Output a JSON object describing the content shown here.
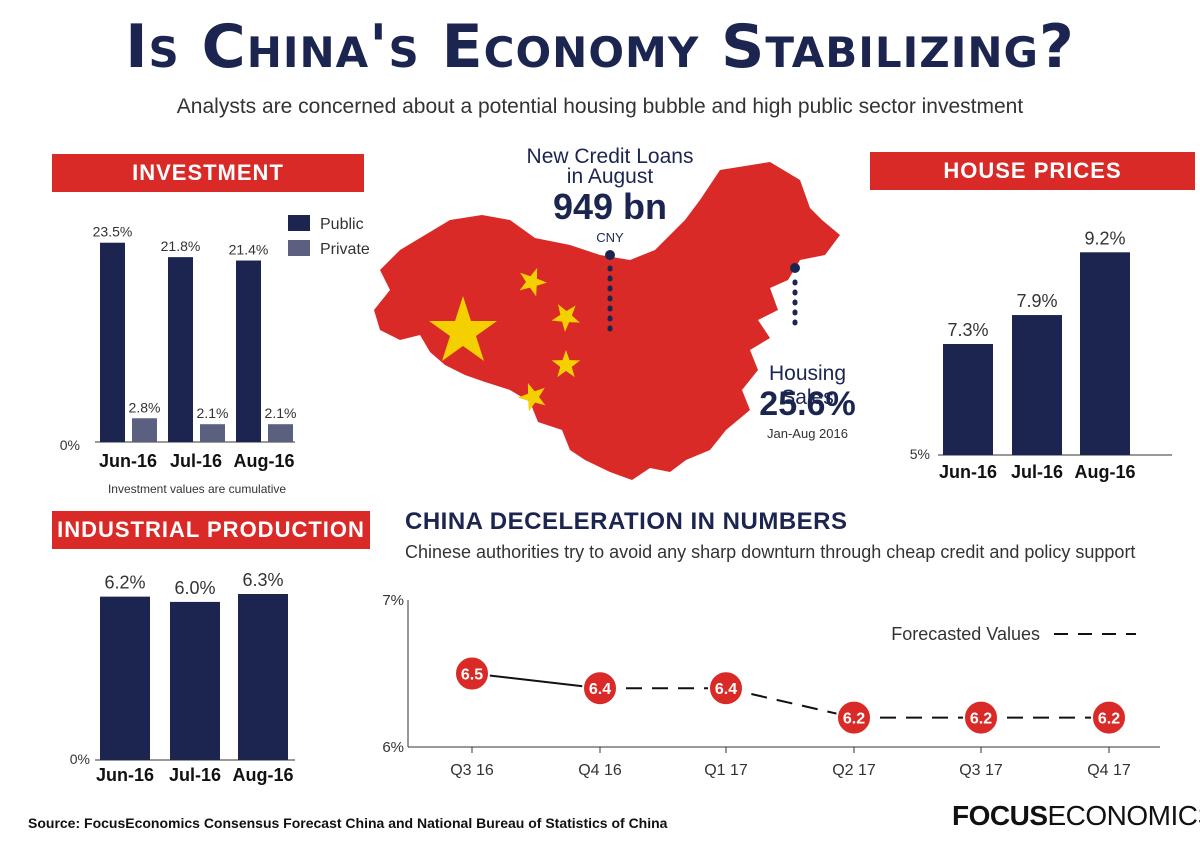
{
  "header": {
    "title": "Is China's Economy Stabilizing?",
    "subtitle": "Analysts are concerned about a potential housing bubble and high public sector investment"
  },
  "colors": {
    "navy": "#1b2550",
    "red": "#d92a27",
    "private": "#5b6080",
    "yellow": "#f5d000"
  },
  "map": {
    "credit_label": "New Credit Loans in August",
    "credit_value": "949 bn",
    "credit_unit": "CNY",
    "housing_label": "Housing Sales",
    "housing_value": "25.6%",
    "housing_period": "Jan-Aug 2016"
  },
  "industrial": {
    "banner": "INDUSTRIAL PRODUCTION"
  },
  "investment": {
    "banner": "INVESTMENT",
    "note": "Investment values are cumulative"
  },
  "house": {
    "banner": "HOUSE PRICES"
  },
  "deceleration": {
    "title": "CHINA DECELERATION IN NUMBERS",
    "subtitle": "Chinese authorities try to avoid any sharp downturn through cheap credit and policy support",
    "legend": "Forecasted Values"
  },
  "footer": {
    "source": "Source: FocusEconomics Consensus Forecast China and National Bureau of Statistics of China",
    "logo_bold": "FOCUS",
    "logo_light": "ECONOMICS"
  },
  "chart_data": [
    {
      "type": "bar",
      "title": "INVESTMENT",
      "categories": [
        "Jun-16",
        "Jul-16",
        "Aug-16"
      ],
      "series": [
        {
          "name": "Public",
          "values": [
            23.5,
            21.8,
            21.4
          ],
          "labels": [
            "23.5%",
            "21.8%",
            "21.4%"
          ]
        },
        {
          "name": "Private",
          "values": [
            2.8,
            2.1,
            2.1
          ],
          "labels": [
            "2.8%",
            "2.1%",
            "2.1%"
          ]
        }
      ],
      "ymin_label": "0%",
      "ylim": [
        0,
        25
      ],
      "note": "Investment values are cumulative",
      "legend": "top-right"
    },
    {
      "type": "bar",
      "title": "HOUSE PRICES",
      "categories": [
        "Jun-16",
        "Jul-16",
        "Aug-16"
      ],
      "values": [
        7.3,
        7.9,
        9.2
      ],
      "labels": [
        "7.3%",
        "7.9%",
        "9.2%"
      ],
      "ymin_label": "5%",
      "ylim": [
        5,
        9.6
      ]
    },
    {
      "type": "bar",
      "title": "INDUSTRIAL PRODUCTION",
      "categories": [
        "Jun-16",
        "Jul-16",
        "Aug-16"
      ],
      "values": [
        6.2,
        6.0,
        6.3
      ],
      "labels": [
        "6.2%",
        "6.0%",
        "6.3%"
      ],
      "ymin_label": "0%",
      "ylim": [
        0,
        6.3
      ]
    },
    {
      "type": "line",
      "title": "CHINA DECELERATION IN NUMBERS",
      "categories": [
        "Q3 16",
        "Q4 16",
        "Q1 17",
        "Q2 17",
        "Q3 17",
        "Q4 17"
      ],
      "values": [
        6.5,
        6.4,
        6.4,
        6.2,
        6.2,
        6.2
      ],
      "labels": [
        "6.5",
        "6.4",
        "6.4",
        "6.2",
        "6.2",
        "6.2"
      ],
      "forecast_from_index": 1,
      "ylim": [
        6,
        7
      ],
      "ytick_labels": [
        "6%",
        "7%"
      ],
      "legend": "Forecasted Values"
    }
  ]
}
